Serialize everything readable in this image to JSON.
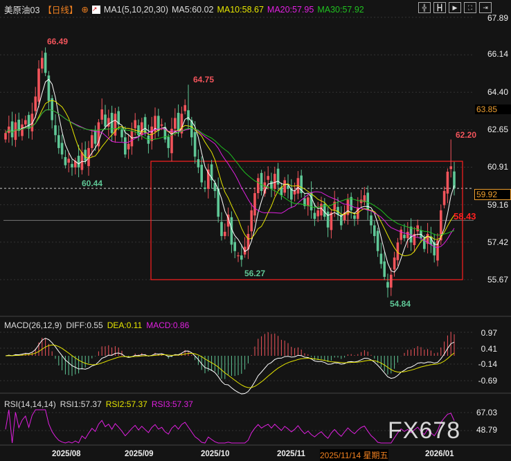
{
  "header": {
    "symbol": "美原油03",
    "period": "【日线】",
    "indicator": "MA1(5,10,20,30)",
    "ma5": "MA5:60.02",
    "ma10": "MA10:58.67",
    "ma20": "MA20:57.95",
    "ma30": "MA30:57.92"
  },
  "toolbar": [
    "crosshair",
    "zoom-range",
    "play",
    "fullscreen",
    "exit"
  ],
  "colors": {
    "up": "#f2545b",
    "down": "#5fc796",
    "ma5": "#ffffff",
    "ma10": "#e6e600",
    "ma20": "#e020e0",
    "ma30": "#20c020",
    "box": "#ff2020"
  },
  "price_axis": [
    "67.89",
    "66.14",
    "64.40",
    "62.65",
    "60.91",
    "59.16",
    "57.42",
    "55.67"
  ],
  "current_price": "59.92",
  "highlight_price": "63.85",
  "ref_line": "58.43",
  "annotations": {
    "h1": "66.49",
    "l1": "60.44",
    "h2": "64.75",
    "l2": "56.27",
    "l3": "54.84",
    "h3": "62.20"
  },
  "macd": {
    "title": "MACD(26,12,9)",
    "diff": "DIFF:0.55",
    "dea": "DEA:0.11",
    "macd": "MACD:0.86",
    "axis": [
      "0.97",
      "0.41",
      "-0.14",
      "-0.69"
    ]
  },
  "rsi": {
    "title": "RSI(14,14,14)",
    "rsi1": "RSI1:57.37",
    "rsi2": "RSI2:57.37",
    "rsi3": "RSI3:57.37",
    "axis": [
      "67.03",
      "48.79"
    ]
  },
  "dates": {
    "d1": "2025/08",
    "d2": "2025/09",
    "d3": "2025/10",
    "d4": "2025/11",
    "cursor": "2025/11/14 星期五",
    "d5": "2026/01"
  },
  "watermark": "FX678",
  "chart_data": {
    "type": "candlestick",
    "ylim": [
      55.67,
      67.89
    ],
    "closes": [
      62.5,
      62.8,
      62.3,
      63.0,
      62.6,
      62.9,
      63.1,
      62.7,
      63.4,
      64.2,
      65.5,
      66.0,
      65.3,
      64.0,
      63.1,
      62.4,
      61.8,
      61.5,
      61.0,
      61.3,
      60.9,
      61.2,
      60.9,
      61.6,
      61.2,
      61.8,
      62.4,
      62.0,
      63.0,
      63.6,
      62.8,
      63.2,
      62.5,
      63.4,
      62.9,
      62.3,
      61.5,
      62.0,
      62.6,
      63.1,
      62.4,
      63.0,
      62.5,
      62.0,
      62.8,
      63.3,
      62.6,
      62.9,
      62.2,
      61.8,
      62.7,
      63.2,
      62.6,
      63.4,
      63.8,
      63.1,
      62.3,
      61.4,
      60.9,
      60.2,
      59.9,
      60.8,
      60.3,
      59.8,
      58.6,
      57.7,
      57.9,
      58.7,
      57.3,
      57.0,
      56.8,
      56.6,
      57.2,
      57.8,
      58.9,
      59.7,
      60.4,
      59.8,
      60.2,
      60.5,
      59.9,
      60.6,
      60.1,
      59.6,
      60.3,
      59.9,
      59.4,
      59.8,
      60.4,
      59.7,
      59.1,
      59.5,
      58.9,
      58.5,
      58.9,
      59.2,
      58.6,
      58.1,
      58.8,
      59.3,
      58.7,
      58.2,
      58.8,
      59.4,
      58.9,
      58.5,
      59.0,
      59.4,
      59.6,
      58.9,
      58.2,
      57.7,
      57.0,
      56.4,
      55.8,
      55.3,
      55.9,
      56.7,
      57.4,
      58.0,
      57.6,
      57.9,
      57.4,
      57.8,
      58.2,
      57.6,
      57.1,
      57.8,
      57.3,
      56.8,
      57.5,
      58.9,
      59.8,
      60.7,
      60.95,
      59.92
    ]
  }
}
